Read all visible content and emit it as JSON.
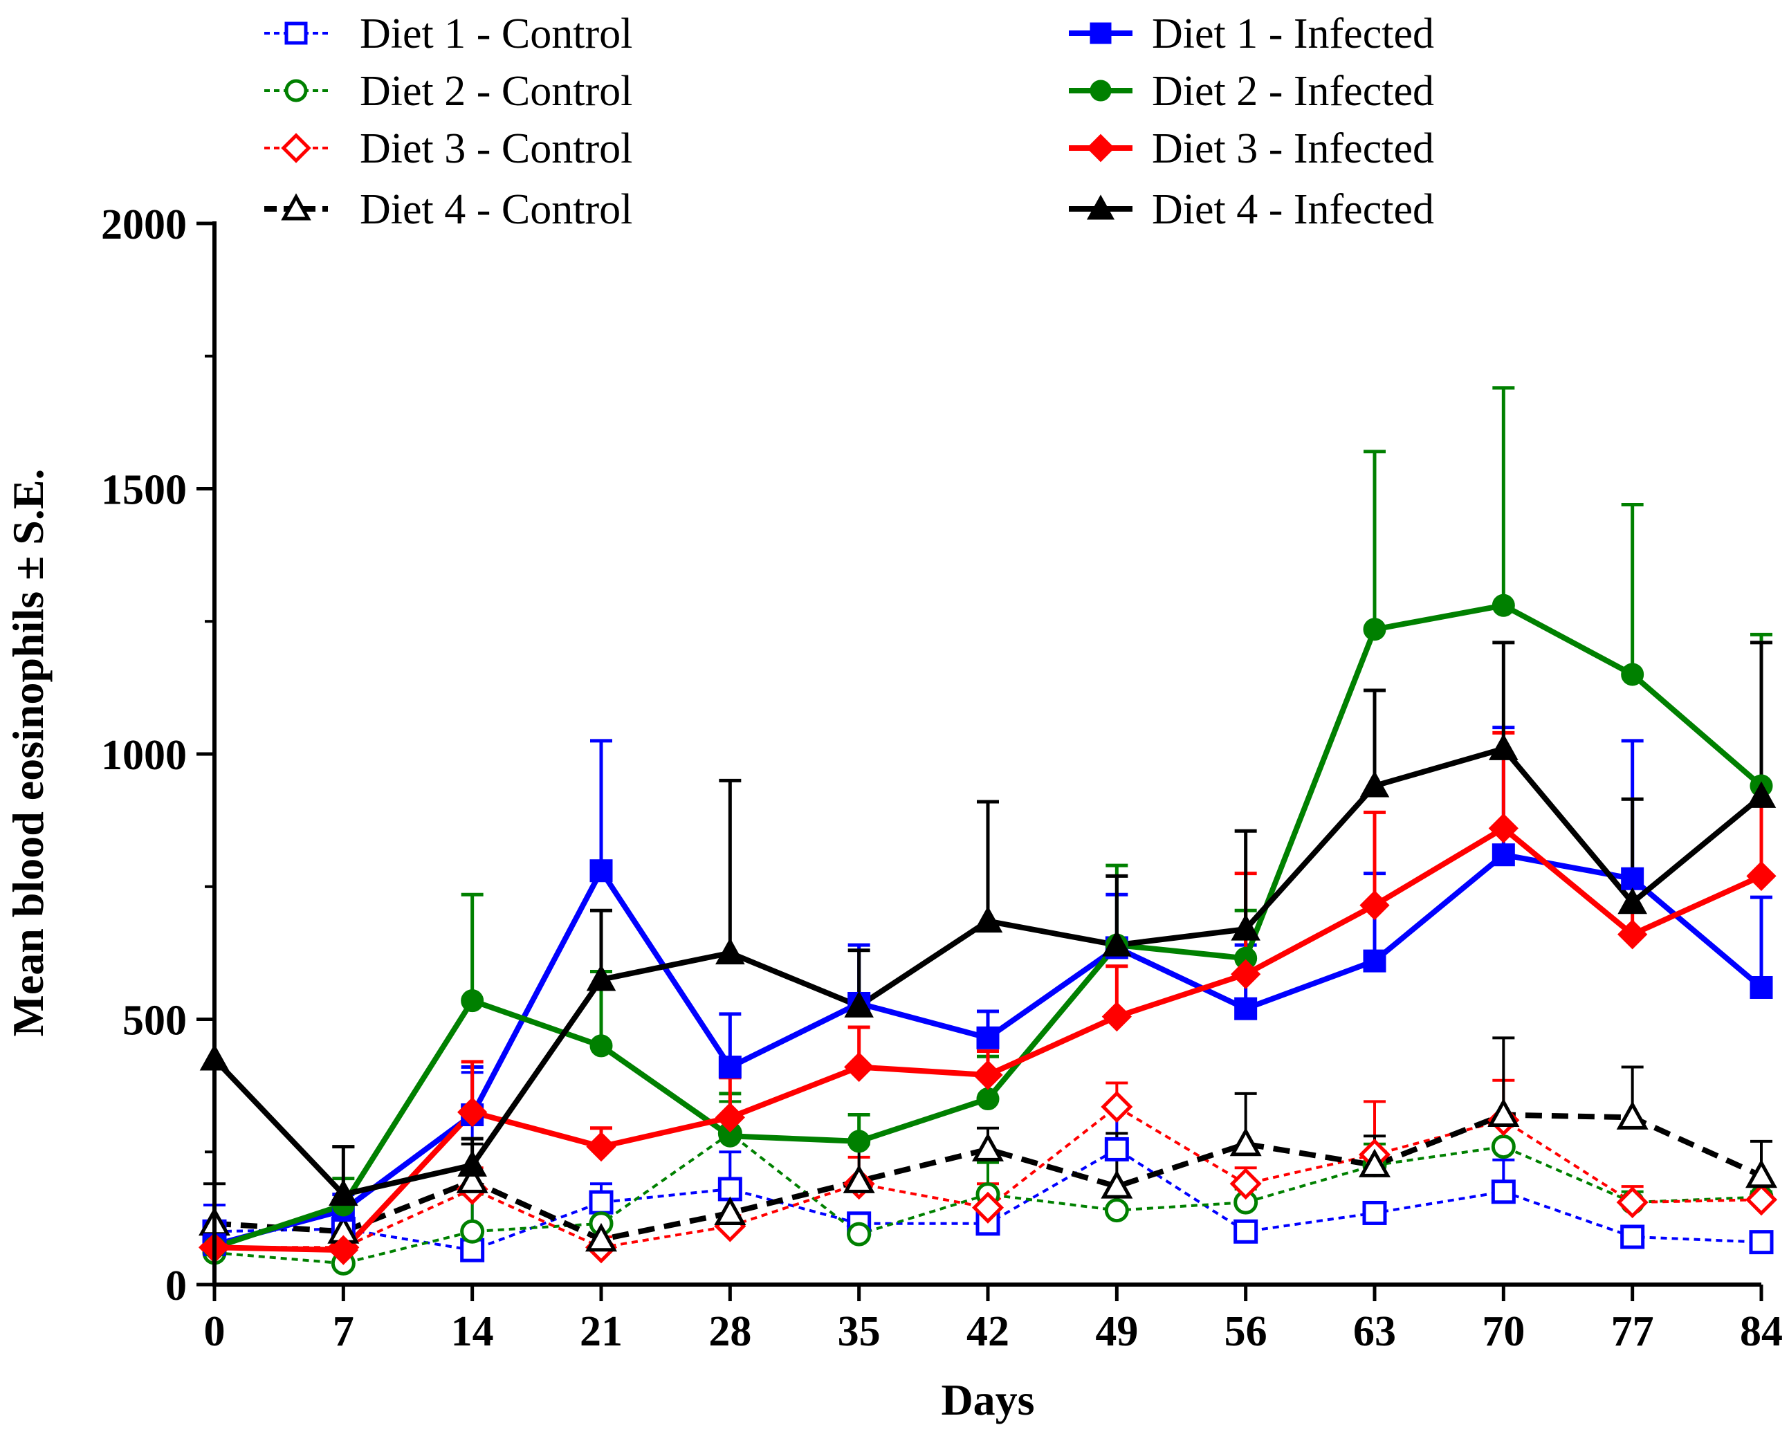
{
  "chart_data": {
    "type": "line",
    "title": "",
    "xlabel": "Days",
    "ylabel": "Mean blood eosinophils ± S.E.",
    "x": [
      0,
      7,
      14,
      21,
      28,
      35,
      42,
      49,
      56,
      63,
      70,
      77,
      84
    ],
    "xlim": [
      0,
      84
    ],
    "ylim": [
      0,
      2000
    ],
    "yticks": [
      0,
      500,
      1000,
      1500,
      2000
    ],
    "x_tick_labels": [
      "0",
      "7",
      "14",
      "21",
      "28",
      "35",
      "42",
      "49",
      "56",
      "63",
      "70",
      "77",
      "84"
    ],
    "y_tick_labels": [
      "0",
      "500",
      "1000",
      "1500",
      "2000"
    ],
    "grid": false,
    "error_bars": "upper (+S.E.)",
    "legend_position": "top",
    "series": [
      {
        "name": "Diet 1 - Control",
        "color": "#0000ff",
        "marker": "square",
        "filled": false,
        "line": "dotted",
        "values": [
          100,
          105,
          65,
          155,
          180,
          115,
          115,
          255,
          100,
          135,
          175,
          90,
          80
        ],
        "errors": [
          50,
          10,
          335,
          35,
          70,
          15,
          20,
          75,
          10,
          20,
          60,
          15,
          10
        ]
      },
      {
        "name": "Diet 2 - Control",
        "color": "#008000",
        "marker": "circle",
        "filled": false,
        "line": "dotted",
        "values": [
          60,
          40,
          100,
          115,
          285,
          95,
          170,
          140,
          155,
          225,
          260,
          155,
          165
        ],
        "errors": [
          20,
          20,
          70,
          20,
          60,
          25,
          60,
          30,
          25,
          40,
          40,
          20,
          10
        ]
      },
      {
        "name": "Diet 3 - Control",
        "color": "#ff0000",
        "marker": "diamond",
        "filled": false,
        "line": "dotted",
        "values": [
          70,
          70,
          180,
          70,
          110,
          190,
          145,
          335,
          190,
          245,
          310,
          155,
          160
        ],
        "errors": [
          15,
          15,
          40,
          20,
          20,
          50,
          45,
          45,
          30,
          100,
          75,
          30,
          10
        ]
      },
      {
        "name": "Diet 4 - Control",
        "color": "#000000",
        "marker": "triangle",
        "filled": false,
        "line": "dashed",
        "values": [
          115,
          100,
          195,
          85,
          135,
          195,
          255,
          185,
          265,
          225,
          320,
          315,
          205
        ],
        "errors": [
          75,
          160,
          70,
          55,
          50,
          70,
          40,
          100,
          95,
          55,
          145,
          95,
          65
        ]
      },
      {
        "name": "Diet 1 - Infected",
        "color": "#0000ff",
        "marker": "square",
        "filled": true,
        "line": "solid",
        "values": [
          75,
          140,
          320,
          780,
          410,
          530,
          465,
          635,
          520,
          610,
          810,
          765,
          560
        ],
        "errors": [
          25,
          30,
          90,
          245,
          100,
          110,
          50,
          100,
          120,
          165,
          240,
          260,
          170
        ]
      },
      {
        "name": "Diet 2 - Infected",
        "color": "#008000",
        "marker": "circle",
        "filled": true,
        "line": "solid",
        "values": [
          70,
          150,
          535,
          450,
          280,
          270,
          350,
          640,
          615,
          1235,
          1280,
          1150,
          940
        ],
        "errors": [
          20,
          50,
          200,
          140,
          80,
          50,
          80,
          150,
          90,
          335,
          410,
          320,
          285
        ]
      },
      {
        "name": "Diet 3 - Infected",
        "color": "#ff0000",
        "marker": "diamond",
        "filled": true,
        "line": "solid",
        "values": [
          70,
          65,
          325,
          260,
          315,
          410,
          395,
          505,
          585,
          715,
          860,
          660,
          770
        ],
        "errors": [
          20,
          20,
          95,
          35,
          75,
          75,
          45,
          95,
          190,
          175,
          180,
          120,
          170
        ]
      },
      {
        "name": "Diet 4 - Infected",
        "color": "#000000",
        "marker": "triangle",
        "filled": true,
        "line": "solid",
        "values": [
          425,
          170,
          225,
          575,
          625,
          525,
          685,
          640,
          670,
          940,
          1010,
          720,
          920
        ],
        "errors": [
          0,
          90,
          50,
          130,
          325,
          105,
          225,
          130,
          185,
          180,
          200,
          195,
          290
        ]
      }
    ]
  }
}
